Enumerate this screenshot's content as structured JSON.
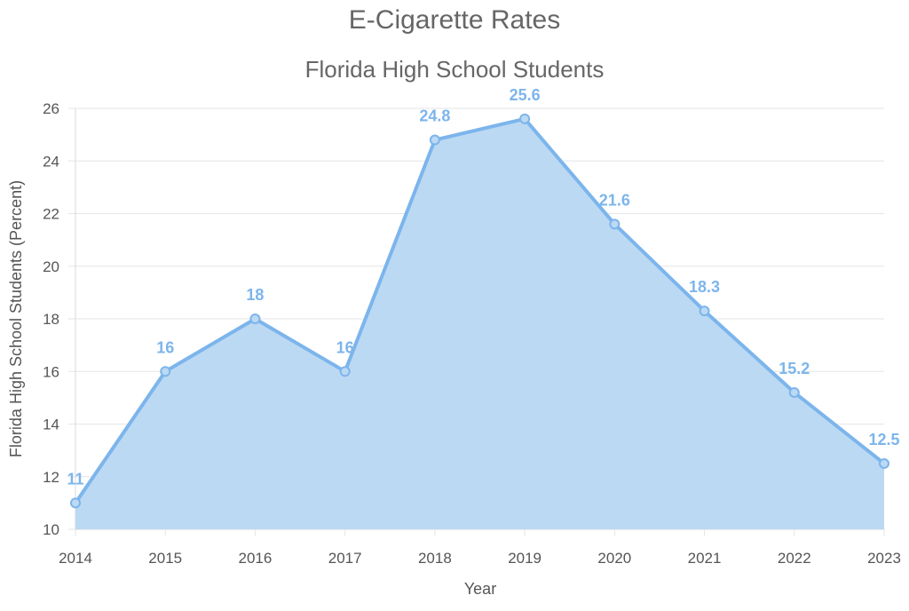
{
  "chart_data": {
    "type": "area",
    "title": "E-Cigarette Rates",
    "subtitle": "Florida High School Students",
    "xlabel": "Year",
    "ylabel": "Florida High School Students (Percent)",
    "categories": [
      "2014",
      "2015",
      "2016",
      "2017",
      "2018",
      "2019",
      "2020",
      "2021",
      "2022",
      "2023"
    ],
    "series": [
      {
        "values": [
          11,
          16,
          18,
          16,
          24.8,
          25.6,
          21.6,
          18.3,
          15.2,
          12.5
        ]
      }
    ],
    "ylim": [
      10,
      26
    ],
    "yticks": [
      10,
      12,
      14,
      16,
      18,
      20,
      22,
      24,
      26
    ],
    "grid": true,
    "data_labels": true,
    "colors": {
      "line": "#7cb5ec",
      "fill": "#bcd9f3",
      "label": "#7cb5ec"
    }
  }
}
